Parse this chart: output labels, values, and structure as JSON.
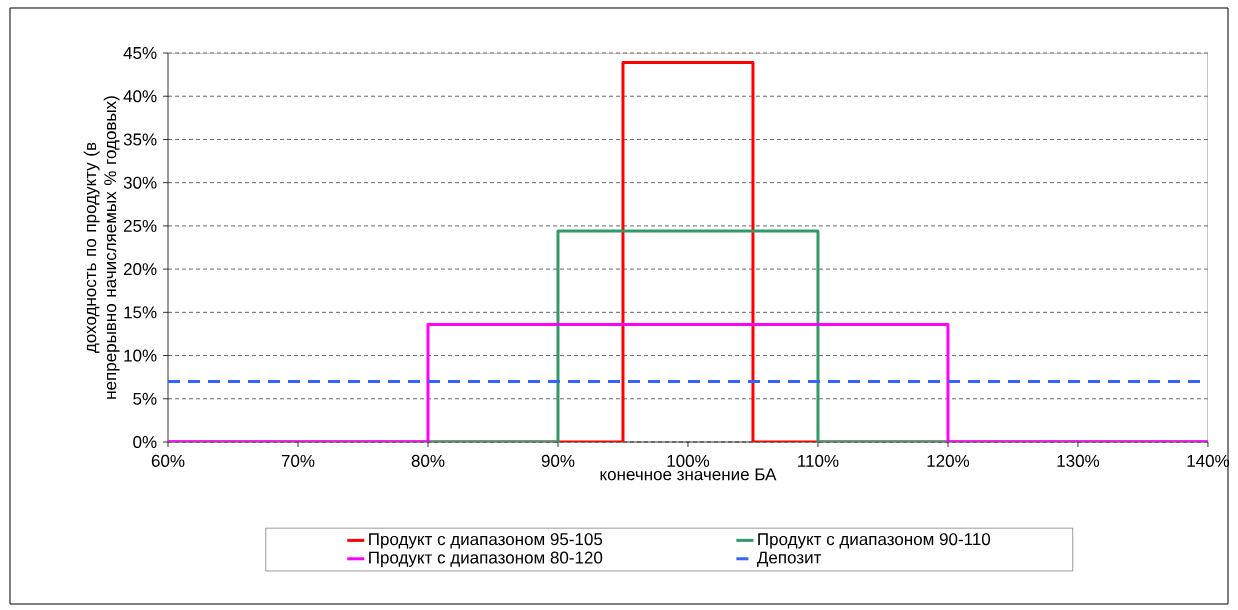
{
  "chart_data": {
    "type": "line",
    "xlabel": "конечное значение БА",
    "ylabel": "доходность по продукту (в непрерывно начисляемых % годовых)",
    "xlim": [
      60,
      140
    ],
    "ylim": [
      0,
      45
    ],
    "xticks": [
      {
        "value": 60,
        "label": "60%"
      },
      {
        "value": 70,
        "label": "70%"
      },
      {
        "value": 80,
        "label": "80%"
      },
      {
        "value": 90,
        "label": "90%"
      },
      {
        "value": 100,
        "label": "100%"
      },
      {
        "value": 110,
        "label": "110%"
      },
      {
        "value": 120,
        "label": "120%"
      },
      {
        "value": 130,
        "label": "130%"
      },
      {
        "value": 140,
        "label": "140%"
      }
    ],
    "yticks": [
      {
        "value": 0,
        "label": "0%"
      },
      {
        "value": 5,
        "label": "5%"
      },
      {
        "value": 10,
        "label": "10%"
      },
      {
        "value": 15,
        "label": "15%"
      },
      {
        "value": 20,
        "label": "20%"
      },
      {
        "value": 25,
        "label": "25%"
      },
      {
        "value": 30,
        "label": "30%"
      },
      {
        "value": 35,
        "label": "35%"
      },
      {
        "value": 40,
        "label": "40%"
      },
      {
        "value": 45,
        "label": "45%"
      }
    ],
    "grid": "y",
    "legend": "bottom",
    "series": [
      {
        "name": "Продукт с диапазоном 95-105",
        "color": "#ff0000",
        "x": [
          60,
          95,
          95,
          105,
          105,
          140
        ],
        "values": [
          0,
          0,
          43.9,
          43.9,
          0,
          0
        ]
      },
      {
        "name": "Продукт с диапазоном 90-110",
        "color": "#339966",
        "x": [
          60,
          90,
          90,
          110,
          110,
          140
        ],
        "values": [
          0,
          0,
          24.4,
          24.4,
          0,
          0
        ]
      },
      {
        "name": "Продукт с диапазоном 80-120",
        "color": "#ff00ff",
        "x": [
          60,
          80,
          80,
          120,
          120,
          140
        ],
        "values": [
          0,
          0,
          13.6,
          13.6,
          0,
          0
        ]
      },
      {
        "name": "Депозит",
        "color": "#3366ff",
        "line_style": "dashed",
        "x": [
          60,
          140
        ],
        "values": [
          7,
          7
        ]
      }
    ]
  }
}
